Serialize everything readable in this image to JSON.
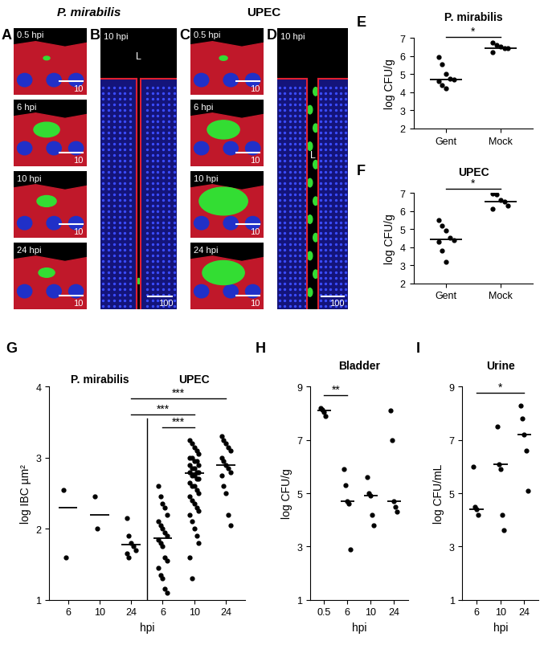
{
  "micrographs": [
    {
      "panel": "A",
      "header": "P. mirabilis",
      "frames": [
        {
          "label": "0.5 hpi",
          "scale_bar": 10
        },
        {
          "label": "6 hpi",
          "scale_bar": 10
        },
        {
          "label": "10 hpi",
          "scale_bar": 10
        },
        {
          "label": "24 hpi",
          "scale_bar": 10
        }
      ]
    },
    {
      "panel": "B",
      "frames": [
        {
          "label": "10 hpi",
          "scale_bar": 100,
          "annotation": "L"
        }
      ]
    },
    {
      "panel": "C",
      "header": "UPEC",
      "frames": [
        {
          "label": "0.5 hpi",
          "scale_bar": 10
        },
        {
          "label": "6 hpi",
          "scale_bar": 10
        },
        {
          "label": "10 hpi",
          "scale_bar": 10
        },
        {
          "label": "24 hpi",
          "scale_bar": 10
        }
      ]
    },
    {
      "panel": "D",
      "frames": [
        {
          "label": "10 hpi",
          "scale_bar": 100,
          "annotation": "L"
        }
      ]
    }
  ],
  "chart_data": [
    {
      "panel": "E",
      "type": "scatter",
      "title": "P. mirabilis",
      "categories": [
        "Gent",
        "Mock"
      ],
      "values": [
        [
          5.95,
          5.55,
          5.0,
          4.75,
          4.7,
          4.6,
          4.4,
          4.2
        ],
        [
          6.75,
          6.6,
          6.5,
          6.45,
          6.45,
          6.2
        ]
      ],
      "medians": [
        4.7,
        6.45
      ],
      "y_label": "log CFU/g",
      "ylim": [
        2,
        7
      ],
      "yticks": [
        2,
        3,
        4,
        5,
        6,
        7
      ],
      "comparisons": [
        {
          "between": [
            0,
            1
          ],
          "label": "*"
        }
      ]
    },
    {
      "panel": "F",
      "type": "scatter",
      "title": "UPEC",
      "categories": [
        "Gent",
        "Mock"
      ],
      "values": [
        [
          5.5,
          5.2,
          4.9,
          4.5,
          4.4,
          4.3,
          3.8,
          3.2
        ],
        [
          6.95,
          6.9,
          6.6,
          6.5,
          6.3,
          6.1
        ]
      ],
      "medians": [
        4.45,
        6.5
      ],
      "y_label": "log CFU/g",
      "ylim": [
        2,
        7
      ],
      "yticks": [
        2,
        3,
        4,
        5,
        6,
        7
      ],
      "comparisons": [
        {
          "between": [
            0,
            1
          ],
          "label": "*"
        }
      ]
    },
    {
      "panel": "G",
      "type": "scatter",
      "categories": [
        "6",
        "10",
        "24"
      ],
      "series": [
        {
          "name": "P. mirabilis",
          "values": [
            [
              2.55,
              1.6
            ],
            [
              2.45,
              2.0
            ],
            [
              2.15,
              1.9,
              1.8,
              1.75,
              1.7,
              1.65,
              1.6
            ]
          ],
          "medians": [
            2.3,
            2.2,
            1.78
          ]
        },
        {
          "name": "UPEC",
          "values": [
            [
              2.6,
              2.45,
              2.35,
              2.3,
              2.2,
              2.1,
              2.05,
              2.0,
              1.95,
              1.9,
              1.85,
              1.8,
              1.75,
              1.6,
              1.55,
              1.45,
              1.35,
              1.3,
              1.15,
              1.1
            ],
            [
              3.25,
              3.2,
              3.15,
              3.1,
              3.05,
              3.0,
              3.0,
              2.95,
              2.95,
              2.9,
              2.9,
              2.85,
              2.85,
              2.8,
              2.8,
              2.8,
              2.75,
              2.75,
              2.7,
              2.7,
              2.65,
              2.6,
              2.6,
              2.55,
              2.5,
              2.45,
              2.4,
              2.35,
              2.3,
              2.25,
              2.2,
              2.1,
              2.0,
              1.9,
              1.8,
              1.6,
              1.3
            ],
            [
              3.3,
              3.25,
              3.2,
              3.15,
              3.1,
              3.0,
              2.95,
              2.9,
              2.85,
              2.8,
              2.75,
              2.6,
              2.5,
              2.2,
              2.05
            ]
          ],
          "medians": [
            1.87,
            2.78,
            2.9
          ]
        }
      ],
      "x_label": "hpi",
      "y_label": "log IBC µm²",
      "ylim": [
        1,
        4
      ],
      "yticks": [
        1,
        2,
        3,
        4
      ],
      "comparisons": [
        {
          "between": [
            [
              0,
              2
            ],
            [
              1,
              2
            ]
          ],
          "label": "***"
        },
        {
          "between": [
            [
              0,
              2
            ],
            [
              1,
              1
            ]
          ],
          "label": "***"
        },
        {
          "between": [
            [
              1,
              0
            ],
            [
              1,
              1
            ]
          ],
          "label": "***"
        }
      ]
    },
    {
      "panel": "H",
      "type": "scatter",
      "title": "Bladder",
      "categories": [
        "0.5",
        "6",
        "10",
        "24"
      ],
      "values": [
        [
          8.2,
          8.15,
          8.05,
          7.9
        ],
        [
          5.9,
          5.3,
          4.7,
          4.6,
          2.9
        ],
        [
          5.6,
          5.0,
          4.9,
          4.2,
          3.8
        ],
        [
          8.1,
          7.0,
          4.7,
          4.5,
          4.3
        ]
      ],
      "medians": [
        8.1,
        4.7,
        4.9,
        4.7
      ],
      "x_label": "hpi",
      "y_label": "log CFU/g",
      "ylim": [
        1,
        9
      ],
      "yticks": [
        1,
        3,
        5,
        7,
        9
      ],
      "comparisons": [
        {
          "between": [
            0,
            1
          ],
          "label": "**"
        }
      ]
    },
    {
      "panel": "I",
      "type": "scatter",
      "title": "Urine",
      "categories": [
        "6",
        "10",
        "24"
      ],
      "values": [
        [
          6.0,
          4.5,
          4.4,
          4.2
        ],
        [
          7.5,
          6.1,
          5.9,
          4.2,
          3.6
        ],
        [
          8.3,
          7.8,
          7.2,
          6.6,
          5.1
        ]
      ],
      "medians": [
        4.4,
        6.1,
        7.2
      ],
      "x_label": "hpi",
      "y_label": "log CFU/mL",
      "ylim": [
        1,
        9
      ],
      "yticks": [
        1,
        3,
        5,
        7,
        9
      ],
      "comparisons": [
        {
          "between": [
            0,
            2
          ],
          "label": "*"
        }
      ]
    }
  ]
}
